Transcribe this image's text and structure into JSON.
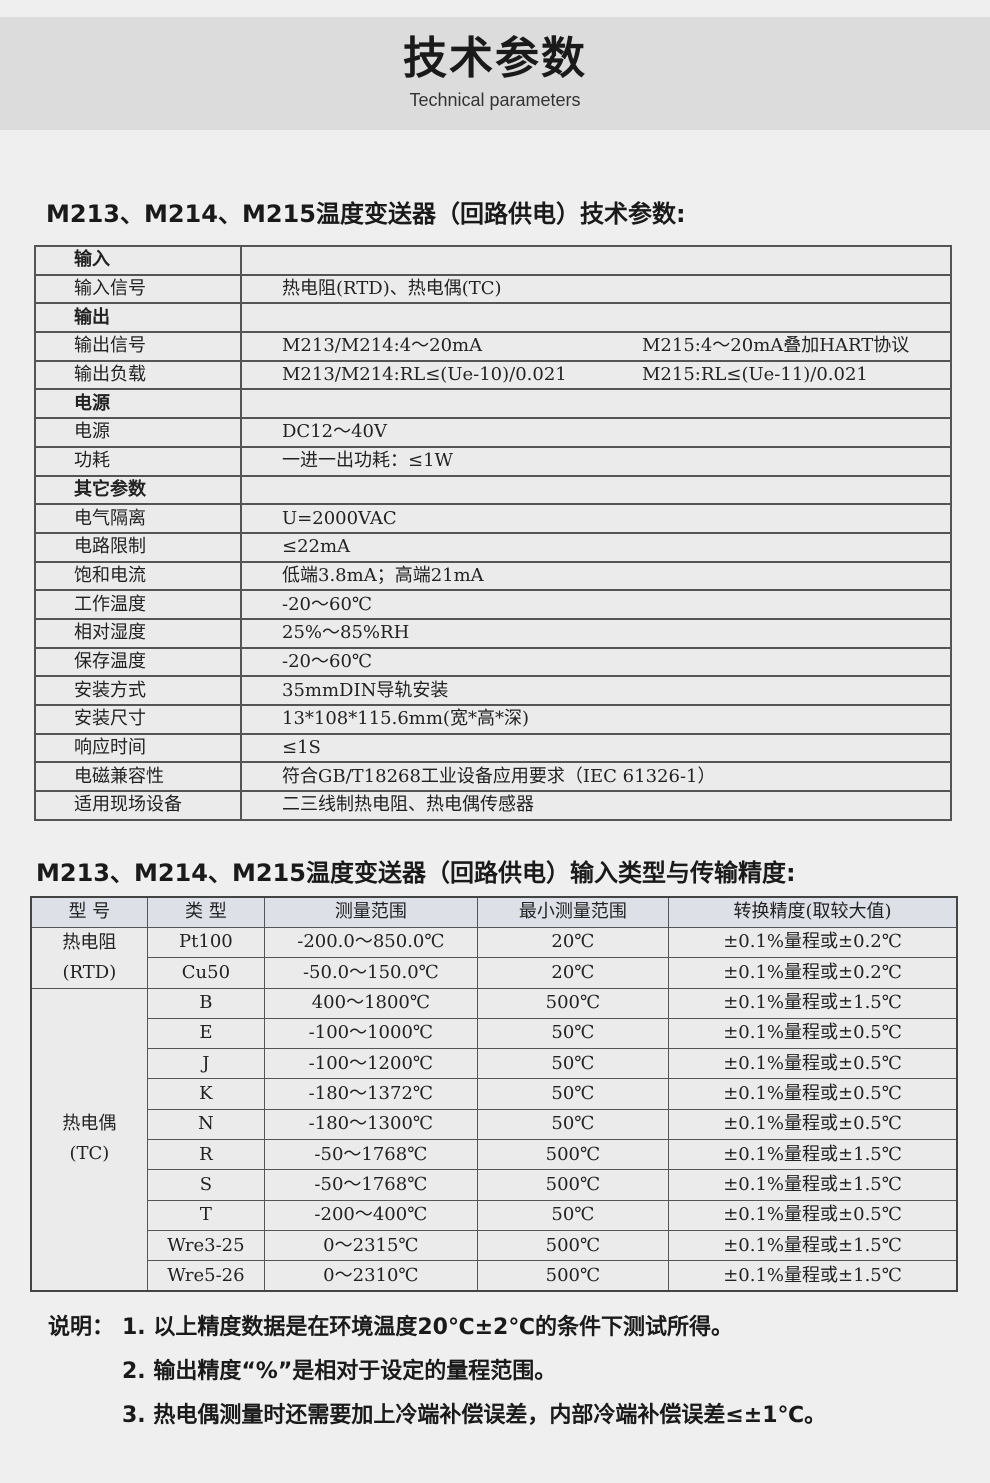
{
  "header": {
    "title": "技术参数",
    "subtitle": "Technical parameters"
  },
  "spec_section": {
    "heading": "M213、M214、M215温度变送器（回路供电）技术参数:",
    "rows": [
      {
        "label": "输入",
        "bold": true,
        "value": ""
      },
      {
        "label": "输入信号",
        "value": "热电阻(RTD)、热电偶(TC)"
      },
      {
        "label": "输出",
        "bold": true,
        "value": ""
      },
      {
        "label": "输出信号",
        "value": "M213/M214:4～20mA",
        "value2": "M215:4～20mA叠加HART协议"
      },
      {
        "label": "输出负载",
        "value": "M213/M214:RL≤(Ue-10)/0.021",
        "value2": "M215:RL≤(Ue-11)/0.021"
      },
      {
        "label": "电源",
        "bold": true,
        "value": ""
      },
      {
        "label": "电源",
        "value": "DC12～40V"
      },
      {
        "label": "功耗",
        "value": "一进一出功耗：≤1W"
      },
      {
        "label": "其它参数",
        "bold": true,
        "value": ""
      },
      {
        "label": "电气隔离",
        "value": "U=2000VAC"
      },
      {
        "label": "电路限制",
        "value": "≤22mA"
      },
      {
        "label": "饱和电流",
        "value": "低端3.8mA；高端21mA"
      },
      {
        "label": "工作温度",
        "value": "-20～60℃"
      },
      {
        "label": "相对湿度",
        "value": "25%～85%RH"
      },
      {
        "label": "保存温度",
        "value": "-20～60℃"
      },
      {
        "label": "安装方式",
        "value": "35mmDIN导轨安装"
      },
      {
        "label": "安装尺寸",
        "value": "13*108*115.6mm(宽*高*深)"
      },
      {
        "label": "响应时间",
        "value": "≤1S"
      },
      {
        "label": "电磁兼容性",
        "value": "符合GB/T18268工业设备应用要求（IEC 61326-1）"
      },
      {
        "label": "适用现场设备",
        "value": "二三线制热电阻、热电偶传感器"
      }
    ]
  },
  "accuracy_section": {
    "heading": "M213、M214、M215温度变送器（回路供电）输入类型与传输精度:",
    "columns": [
      "型 号",
      "类 型",
      "测量范围",
      "最小测量范围",
      "转换精度(取较大值)"
    ],
    "groups": [
      {
        "model": "热电阻",
        "model_sub": "(RTD)",
        "rows": [
          [
            "Pt100",
            "-200.0～850.0℃",
            "20℃",
            "±0.1%量程或±0.2℃"
          ],
          [
            "Cu50",
            "-50.0～150.0℃",
            "20℃",
            "±0.1%量程或±0.2℃"
          ]
        ]
      },
      {
        "model": "热电偶",
        "model_sub": "(TC)",
        "rows": [
          [
            "B",
            "400～1800℃",
            "500℃",
            "±0.1%量程或±1.5℃"
          ],
          [
            "E",
            "-100～1000℃",
            "50℃",
            "±0.1%量程或±0.5℃"
          ],
          [
            "J",
            "-100～1200℃",
            "50℃",
            "±0.1%量程或±0.5℃"
          ],
          [
            "K",
            "-180～1372℃",
            "50℃",
            "±0.1%量程或±0.5℃"
          ],
          [
            "N",
            "-180～1300℃",
            "50℃",
            "±0.1%量程或±0.5℃"
          ],
          [
            "R",
            "-50～1768℃",
            "500℃",
            "±0.1%量程或±1.5℃"
          ],
          [
            "S",
            "-50～1768℃",
            "500℃",
            "±0.1%量程或±1.5℃"
          ],
          [
            "T",
            "-200～400℃",
            "50℃",
            "±0.1%量程或±0.5℃"
          ],
          [
            "Wre3-25",
            "0～2315℃",
            "500℃",
            "±0.1%量程或±1.5℃"
          ],
          [
            "Wre5-26",
            "0～2310℃",
            "500℃",
            "±0.1%量程或±1.5℃"
          ]
        ]
      }
    ]
  },
  "notes": {
    "label": "说明：",
    "items": [
      "1. 以上精度数据是在环境温度20℃±2℃的条件下测试所得。",
      "2. 输出精度“%”是相对于设定的量程范围。",
      "3. 热电偶测量时还需要加上冷端补偿误差，内部冷端补偿误差≤±1℃。"
    ]
  }
}
